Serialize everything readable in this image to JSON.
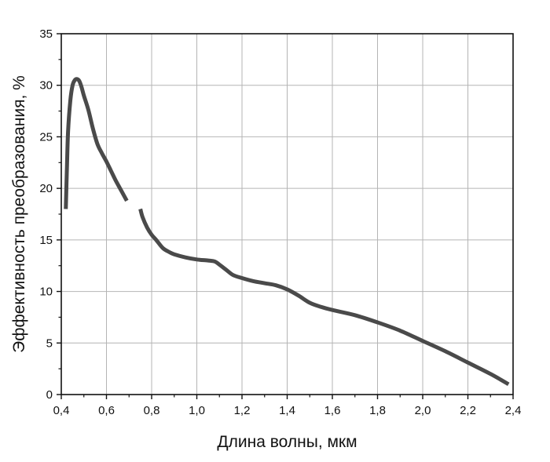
{
  "chart_data": {
    "type": "line",
    "title": "",
    "xlabel": "Длина волны, мкм",
    "ylabel": "Эффективность преобразования, %",
    "xlim": [
      0.4,
      2.4
    ],
    "ylim": [
      0,
      35
    ],
    "x_ticks": [
      0.4,
      0.6,
      0.8,
      1.0,
      1.2,
      1.4,
      1.6,
      1.8,
      2.0,
      2.2,
      2.4
    ],
    "x_tick_labels": [
      "0,4",
      "0,6",
      "0,8",
      "1,0",
      "1,2",
      "1,4",
      "1,6",
      "1,8",
      "2,0",
      "2,2",
      "2,4"
    ],
    "y_ticks": [
      0,
      5,
      10,
      15,
      20,
      25,
      30,
      35
    ],
    "y_tick_labels": [
      "0",
      "5",
      "10",
      "15",
      "20",
      "25",
      "30",
      "35"
    ],
    "grid": true,
    "line_color": "#4a4a4a",
    "grid_color": "#b4b4b4",
    "axis_color": "#111111",
    "series": [
      {
        "segments": [
          {
            "x": [
              0.42,
              0.425,
              0.43,
              0.44,
              0.45,
              0.46,
              0.47,
              0.48,
              0.49,
              0.5,
              0.52,
              0.54,
              0.56,
              0.58,
              0.6,
              0.62,
              0.64,
              0.66,
              0.68,
              0.69
            ],
            "y": [
              18.0,
              22.0,
              25.5,
              28.5,
              30.0,
              30.5,
              30.6,
              30.4,
              29.8,
              29.0,
              27.6,
              25.8,
              24.3,
              23.4,
              22.6,
              21.7,
              20.8,
              20.0,
              19.2,
              18.8
            ]
          },
          {
            "x": [
              0.75,
              0.76,
              0.78,
              0.8,
              0.82,
              0.85,
              0.88,
              0.9,
              0.95,
              1.0,
              1.05,
              1.08,
              1.1,
              1.13,
              1.16,
              1.2,
              1.25,
              1.3,
              1.35,
              1.4,
              1.45,
              1.5,
              1.55,
              1.6,
              1.7,
              1.8,
              1.9,
              2.0,
              2.1,
              2.2,
              2.3,
              2.38
            ],
            "y": [
              18.0,
              17.2,
              16.2,
              15.5,
              15.0,
              14.2,
              13.8,
              13.6,
              13.3,
              13.1,
              13.0,
              12.9,
              12.6,
              12.1,
              11.6,
              11.3,
              11.0,
              10.8,
              10.6,
              10.2,
              9.6,
              8.9,
              8.5,
              8.2,
              7.7,
              7.0,
              6.2,
              5.2,
              4.2,
              3.1,
              2.0,
              1.0
            ]
          }
        ]
      }
    ]
  }
}
